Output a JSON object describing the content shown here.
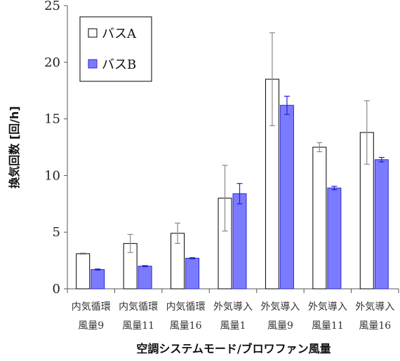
{
  "chart_data": {
    "type": "bar",
    "ylabel": "換気回数 [回/h]",
    "xlabel": "空調システムモード/ブロワファン風量",
    "ylim": [
      0,
      25
    ],
    "yticks": [
      0,
      5,
      10,
      15,
      20,
      25
    ],
    "grid": false,
    "legend_position": "top-left",
    "categories": [
      [
        "内気循環",
        "風量9"
      ],
      [
        "内気循環",
        "風量11"
      ],
      [
        "内気循環",
        "風量16"
      ],
      [
        "外気導入",
        "風量1"
      ],
      [
        "外気導入",
        "風量9"
      ],
      [
        "外気導入",
        "風量11"
      ],
      [
        "外気導入",
        "風量16"
      ]
    ],
    "series": [
      {
        "name": "バスA",
        "fill": "#ffffff",
        "stroke": "#000000",
        "error_color": "#888888",
        "values": [
          3.1,
          4.0,
          4.9,
          8.0,
          18.5,
          12.5,
          13.8
        ],
        "error": [
          0.05,
          0.8,
          0.9,
          2.9,
          4.1,
          0.4,
          2.8
        ]
      },
      {
        "name": "バスB",
        "fill": "#7b7bff",
        "stroke": "#2a2ad0",
        "error_color": "#2222cc",
        "values": [
          1.7,
          2.0,
          2.7,
          8.4,
          16.2,
          8.9,
          11.4
        ],
        "error": [
          0.05,
          0.05,
          0.05,
          0.9,
          0.8,
          0.15,
          0.2
        ]
      }
    ]
  }
}
